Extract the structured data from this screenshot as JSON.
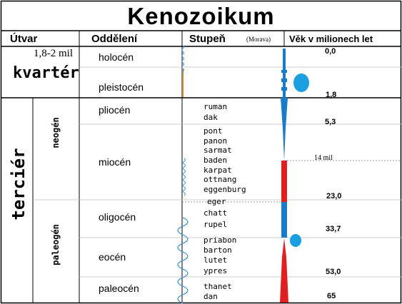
{
  "title": "Kenozoikum",
  "headers": {
    "utvar": "Útvar",
    "oddeleni": "Oddělení",
    "stupen": "Stupeň",
    "stupen_note": "(Morava)",
    "vek": "Věk v milionech let"
  },
  "quaternary": {
    "name": "kvartér",
    "duration": "1,8-2 mil",
    "epochs": [
      "holocén",
      "pleistocén"
    ]
  },
  "tertiary": {
    "name": "terciér",
    "neogen": "neogén",
    "paleogen": "paleogén",
    "epochs": [
      "pliocén",
      "miocén",
      "oligocén",
      "eocén",
      "paleocén"
    ]
  },
  "stages": {
    "pliocen": [
      "ruman",
      "dak"
    ],
    "miocen": [
      "pont",
      "panon",
      "sarmat",
      "baden",
      "karpat",
      "ottnang",
      "eggenburg"
    ],
    "egerLabel": "eger",
    "oligocen": [
      "chatt",
      "rupel"
    ],
    "eocen": [
      "priabon",
      "barton",
      "lutet",
      "ypres"
    ],
    "paleocen": [
      "thanet",
      "dan"
    ]
  },
  "ages": {
    "a0": "0,0",
    "a18": "1,8",
    "a53": "5,3",
    "a14": "14 mil",
    "a23": "23,0",
    "a337": "33,7",
    "a530": "53,0",
    "a65": "65"
  },
  "colors": {
    "blue": "#1a7bc8",
    "red": "#e02020",
    "ballBlue": "#1a9fe0",
    "waveBlue": "#3a8fd8",
    "orange": "#e08020"
  }
}
